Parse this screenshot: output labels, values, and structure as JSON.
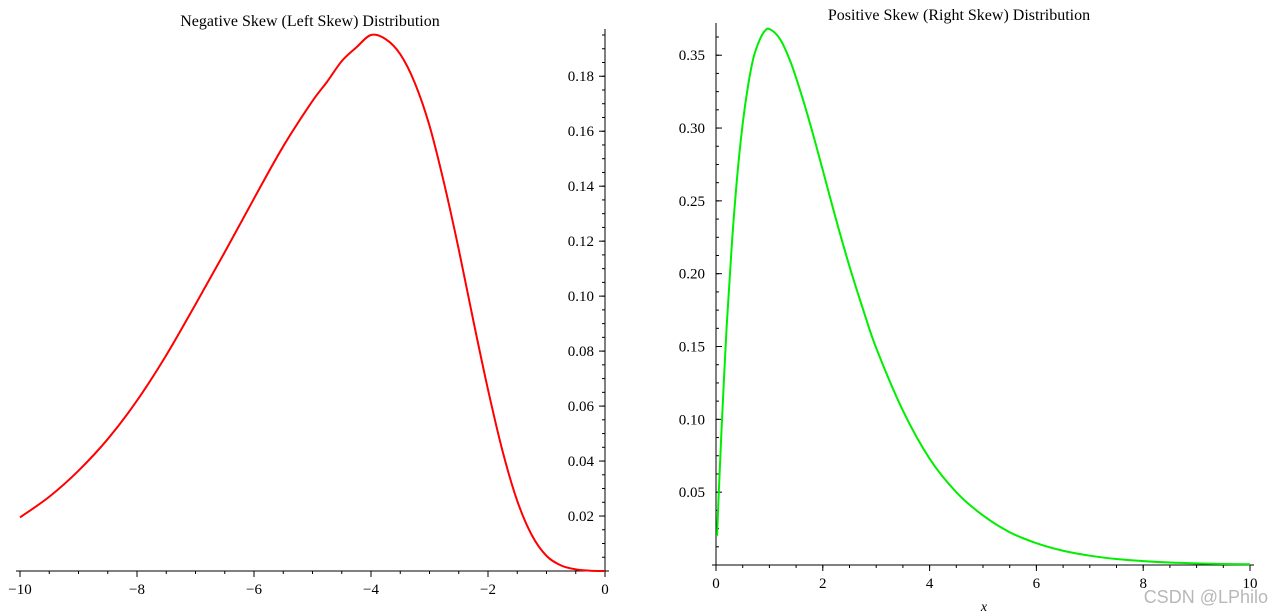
{
  "chart_data": [
    {
      "type": "line",
      "title": "Negative Skew (Left Skew) Distribution",
      "xlabel": "",
      "ylabel": "",
      "xlim": [
        -10,
        0
      ],
      "ylim": [
        0,
        0.195
      ],
      "x_ticks": [
        -10,
        -8,
        -6,
        -4,
        -2,
        0
      ],
      "x_tick_labels": [
        "−10",
        "−8",
        "−6",
        "−4",
        "−2",
        "0"
      ],
      "y_ticks": [
        0.02,
        0.04,
        0.06,
        0.08,
        0.1,
        0.12,
        0.14,
        0.16,
        0.18
      ],
      "y_tick_labels": [
        "0.02",
        "0.04",
        "0.06",
        "0.08",
        "0.10",
        "0.12",
        "0.14",
        "0.16",
        "0.18"
      ],
      "y_axis_side": "right",
      "grid": false,
      "series": [
        {
          "color": "#ff0000",
          "x": [
            -10,
            -9.5,
            -9,
            -8.5,
            -8,
            -7.5,
            -7,
            -6.5,
            -6,
            -5.5,
            -5,
            -4.75,
            -4.5,
            -4.25,
            -4,
            -3.75,
            -3.5,
            -3.25,
            -3,
            -2.75,
            -2.5,
            -2.25,
            -2,
            -1.75,
            -1.5,
            -1.25,
            -1,
            -0.75,
            -0.5,
            -0.25,
            0
          ],
          "y": [
            0.0195,
            0.027,
            0.0365,
            0.048,
            0.062,
            0.0785,
            0.097,
            0.116,
            0.1355,
            0.1545,
            0.171,
            0.178,
            0.1855,
            0.1905,
            0.195,
            0.1935,
            0.188,
            0.1775,
            0.162,
            0.141,
            0.117,
            0.091,
            0.066,
            0.0435,
            0.0255,
            0.013,
            0.0055,
            0.002,
            0.0006,
            0.0001,
            0.0
          ]
        }
      ]
    },
    {
      "type": "line",
      "title": "Positive Skew (Right Skew) Distribution",
      "xlabel": "x",
      "ylabel": "",
      "xlim": [
        0,
        10
      ],
      "ylim": [
        0,
        0.368
      ],
      "x_ticks": [
        0,
        2,
        4,
        6,
        8,
        10
      ],
      "x_tick_labels": [
        "0",
        "2",
        "4",
        "6",
        "8",
        "10"
      ],
      "y_ticks": [
        0.05,
        0.1,
        0.15,
        0.2,
        0.25,
        0.3,
        0.35
      ],
      "y_tick_labels": [
        "0.05",
        "0.10",
        "0.15",
        "0.20",
        "0.25",
        "0.30",
        "0.35"
      ],
      "y_axis_side": "left",
      "grid": false,
      "series": [
        {
          "color": "#00ee00",
          "x": [
            0.02,
            0.05,
            0.1,
            0.2,
            0.3,
            0.4,
            0.5,
            0.6,
            0.7,
            0.8,
            0.9,
            1.0,
            1.2,
            1.4,
            1.6,
            1.8,
            2.0,
            2.25,
            2.5,
            2.75,
            3.0,
            3.5,
            4.0,
            4.5,
            5.0,
            5.5,
            6.0,
            6.5,
            7.0,
            7.5,
            8.0,
            8.5,
            9.0,
            9.5,
            10.0
          ],
          "y": [
            0.02,
            0.048,
            0.09,
            0.164,
            0.222,
            0.268,
            0.303,
            0.329,
            0.348,
            0.359,
            0.366,
            0.368,
            0.361,
            0.345,
            0.323,
            0.298,
            0.271,
            0.237,
            0.205,
            0.176,
            0.149,
            0.106,
            0.073,
            0.05,
            0.034,
            0.0225,
            0.015,
            0.0098,
            0.0064,
            0.0041,
            0.0027,
            0.0017,
            0.0011,
            0.0007,
            0.0005
          ]
        }
      ]
    }
  ],
  "watermark": "CSDN @LPhilo"
}
